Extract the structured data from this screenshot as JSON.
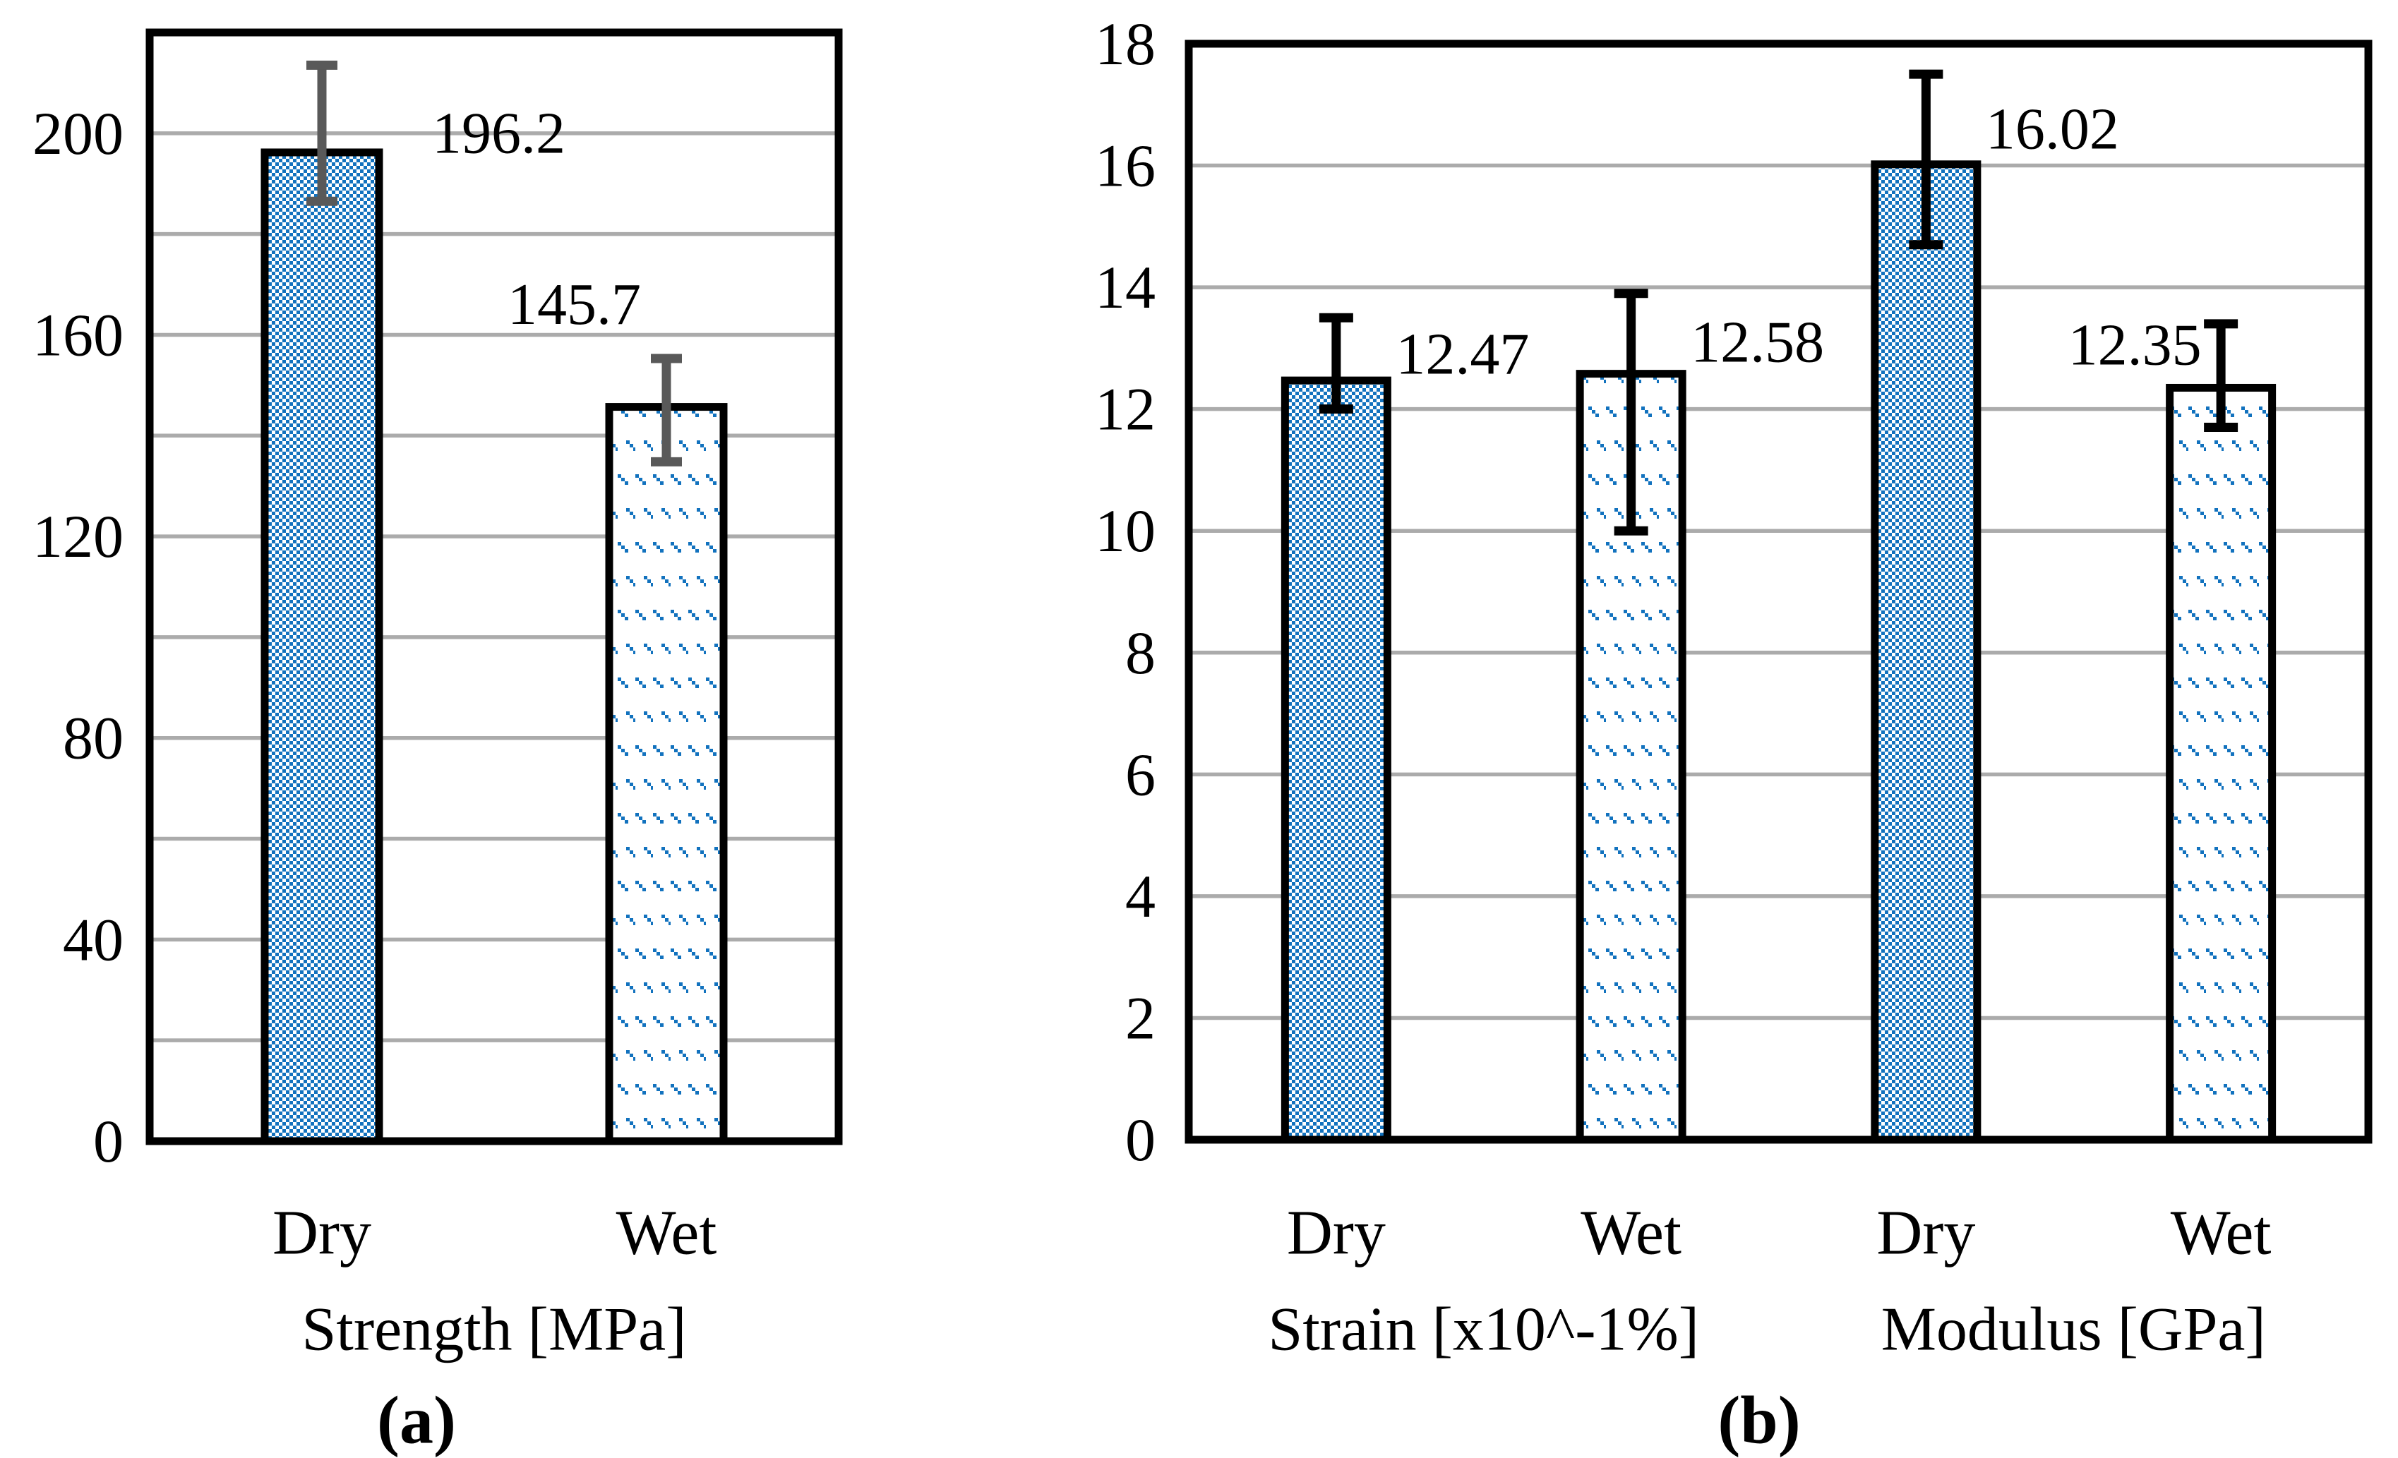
{
  "figure": {
    "background": "#ffffff",
    "hatch_color": "#1272BE",
    "grid_color": "#ABABAB",
    "border_color": "#000000",
    "bar_fill": "#ffffff",
    "text_color": "#000000"
  },
  "chart_data": [
    {
      "type": "bar",
      "panel": "a",
      "caption": "(a)",
      "title": "Strength [MPa]",
      "categories": [
        "Dry",
        "Wet"
      ],
      "values": [
        196.2,
        145.7
      ],
      "data_labels": [
        "196.2",
        "145.7"
      ],
      "error_low": [
        186.5,
        134.8
      ],
      "error_high": [
        213.5,
        155.3
      ],
      "error_color": "#595959",
      "ylim": [
        0,
        220
      ],
      "grid_step": 20,
      "ytick_values": [
        0,
        40,
        80,
        120,
        160,
        200
      ],
      "ytick_labels": [
        "0",
        "40",
        "80",
        "120",
        "160",
        "200"
      ],
      "hatch_styles": [
        "dense-diagonal",
        "dashed-diagonal"
      ],
      "label_side": [
        "right",
        "left"
      ],
      "legend_position": "none",
      "grid_on": true
    },
    {
      "type": "bar",
      "panel": "b",
      "caption": "(b)",
      "group_labels": [
        "Strain [x10^-1%]",
        "Modulus [GPa]"
      ],
      "categories": [
        "Dry",
        "Wet",
        "Dry",
        "Wet"
      ],
      "values": [
        12.47,
        12.58,
        16.02,
        12.35
      ],
      "data_labels": [
        "12.47",
        "12.58",
        "16.02",
        "12.35"
      ],
      "error_low": [
        12.0,
        10.0,
        14.7,
        11.7
      ],
      "error_high": [
        13.5,
        13.9,
        17.5,
        13.4
      ],
      "error_color": "#000000",
      "ylim": [
        0,
        18
      ],
      "grid_step": 2,
      "ytick_values": [
        0,
        2,
        4,
        6,
        8,
        10,
        12,
        14,
        16,
        18
      ],
      "ytick_labels": [
        "0",
        "2",
        "4",
        "6",
        "8",
        "10",
        "12",
        "14",
        "16",
        "18"
      ],
      "hatch_styles": [
        "dense-diagonal",
        "dashed-diagonal",
        "dense-diagonal",
        "dashed-diagonal"
      ],
      "label_side": [
        "right",
        "right",
        "right",
        "left"
      ],
      "legend_position": "none",
      "grid_on": true
    }
  ]
}
